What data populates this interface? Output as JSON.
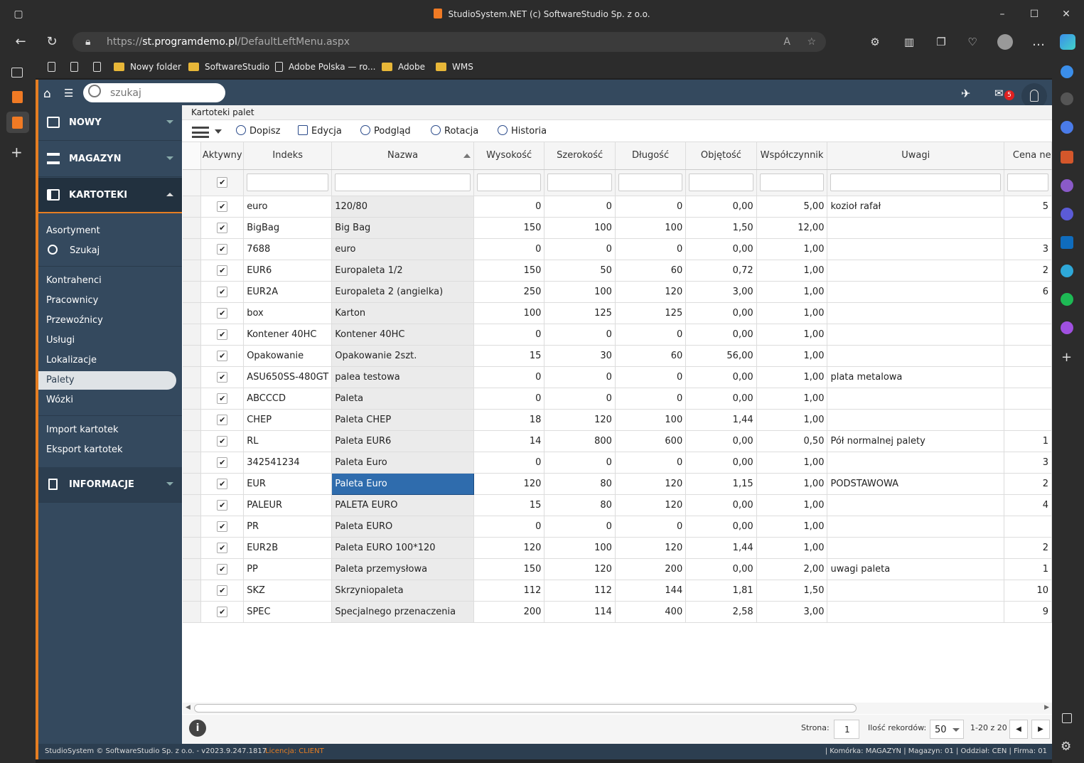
{
  "window": {
    "title": "StudioSystem.NET (c) SoftwareStudio Sp. z o.o."
  },
  "browser": {
    "url_prefix": "https://",
    "url_host": "st.programdemo.pl",
    "url_path": "/DefaultLeftMenu.aspx",
    "bookmarks": [
      "Nowy folder",
      "SoftwareStudio",
      "Adobe Polska — ro...",
      "Adobe",
      "WMS"
    ]
  },
  "topbar": {
    "search_placeholder": "szukaj",
    "mail_count": "5"
  },
  "sidebar": {
    "sections": {
      "nowy": "NOWY",
      "magazyn": "MAGAZYN",
      "kartoteki": "KARTOTEKI",
      "informacje": "INFORMACJE"
    },
    "items": [
      "Asortyment",
      "Szukaj",
      "Kontrahenci",
      "Pracownicy",
      "Przewoźnicy",
      "Usługi",
      "Lokalizacje",
      "Palety",
      "Wózki",
      "Import kartotek",
      "Eksport kartotek"
    ]
  },
  "breadcrumb": "Kartoteki palet",
  "toolbar": {
    "dopisz": "Dopisz",
    "edycja": "Edycja",
    "podglad": "Podgląd",
    "rotacja": "Rotacja",
    "historia": "Historia"
  },
  "grid": {
    "headers": [
      "Aktywny",
      "Indeks",
      "Nazwa",
      "Wysokość",
      "Szerokość",
      "Długość",
      "Objętość",
      "Współczynnik",
      "Uwagi",
      "Cena ne"
    ],
    "rows": [
      [
        "euro",
        "120/80",
        "0",
        "0",
        "0",
        "0,00",
        "5,00",
        "kozioł rafał",
        "5"
      ],
      [
        "BigBag",
        "Big Bag",
        "150",
        "100",
        "100",
        "1,50",
        "12,00",
        "",
        ""
      ],
      [
        "7688",
        "euro",
        "0",
        "0",
        "0",
        "0,00",
        "1,00",
        "",
        "3"
      ],
      [
        "EUR6",
        "Europaleta 1/2",
        "150",
        "50",
        "60",
        "0,72",
        "1,00",
        "",
        "2"
      ],
      [
        "EUR2A",
        "Europaleta 2 (angielka)",
        "250",
        "100",
        "120",
        "3,00",
        "1,00",
        "",
        "6"
      ],
      [
        "box",
        "Karton",
        "100",
        "125",
        "125",
        "0,00",
        "1,00",
        "",
        ""
      ],
      [
        "Kontener 40HC",
        "Kontener 40HC",
        "0",
        "0",
        "0",
        "0,00",
        "1,00",
        "",
        ""
      ],
      [
        "Opakowanie",
        "Opakowanie 2szt.",
        "15",
        "30",
        "60",
        "56,00",
        "1,00",
        "",
        ""
      ],
      [
        "ASU650SS-480GT",
        "palea testowa",
        "0",
        "0",
        "0",
        "0,00",
        "1,00",
        "plata metalowa",
        ""
      ],
      [
        "ABCCCD",
        "Paleta",
        "0",
        "0",
        "0",
        "0,00",
        "1,00",
        "",
        ""
      ],
      [
        "CHEP",
        "Paleta CHEP",
        "18",
        "120",
        "100",
        "1,44",
        "1,00",
        "",
        ""
      ],
      [
        "RL",
        "Paleta EUR6",
        "14",
        "800",
        "600",
        "0,00",
        "0,50",
        "Pół normalnej palety",
        "1"
      ],
      [
        "342541234",
        "Paleta Euro",
        "0",
        "0",
        "0",
        "0,00",
        "1,00",
        "",
        "3"
      ],
      [
        "EUR",
        "Paleta Euro",
        "120",
        "80",
        "120",
        "1,15",
        "1,00",
        "PODSTAWOWA",
        "2"
      ],
      [
        "PALEUR",
        "PALETA EURO",
        "15",
        "80",
        "120",
        "0,00",
        "1,00",
        "",
        "4"
      ],
      [
        "PR",
        "Paleta EURO",
        "0",
        "0",
        "0",
        "0,00",
        "1,00",
        "",
        ""
      ],
      [
        "EUR2B",
        "Paleta EURO 100*120",
        "120",
        "100",
        "120",
        "1,44",
        "1,00",
        "",
        "2"
      ],
      [
        "PP",
        "Paleta przemysłowa",
        "150",
        "120",
        "200",
        "0,00",
        "2,00",
        "uwagi paleta",
        "1"
      ],
      [
        "SKZ",
        "Skrzyniopaleta",
        "112",
        "112",
        "144",
        "1,81",
        "1,50",
        "",
        "10"
      ],
      [
        "SPEC",
        "Specjalnego przenaczenia",
        "200",
        "114",
        "400",
        "2,58",
        "3,00",
        "",
        "9"
      ]
    ],
    "selected_row": 13
  },
  "pager": {
    "page_label": "Strona:",
    "page_value": "1",
    "records_label": "Ilość rekordów:",
    "records_value": "50",
    "range": "1-20 z 20"
  },
  "status": {
    "copyright": "StudioSystem © SoftwareStudio Sp. z o.o. - v2023.9.247.1817",
    "license": "Licencja: CLIENT",
    "context": "| Komórka: MAGAZYN | Magazyn: 01 | Oddział: CEN | Firma: 01"
  }
}
